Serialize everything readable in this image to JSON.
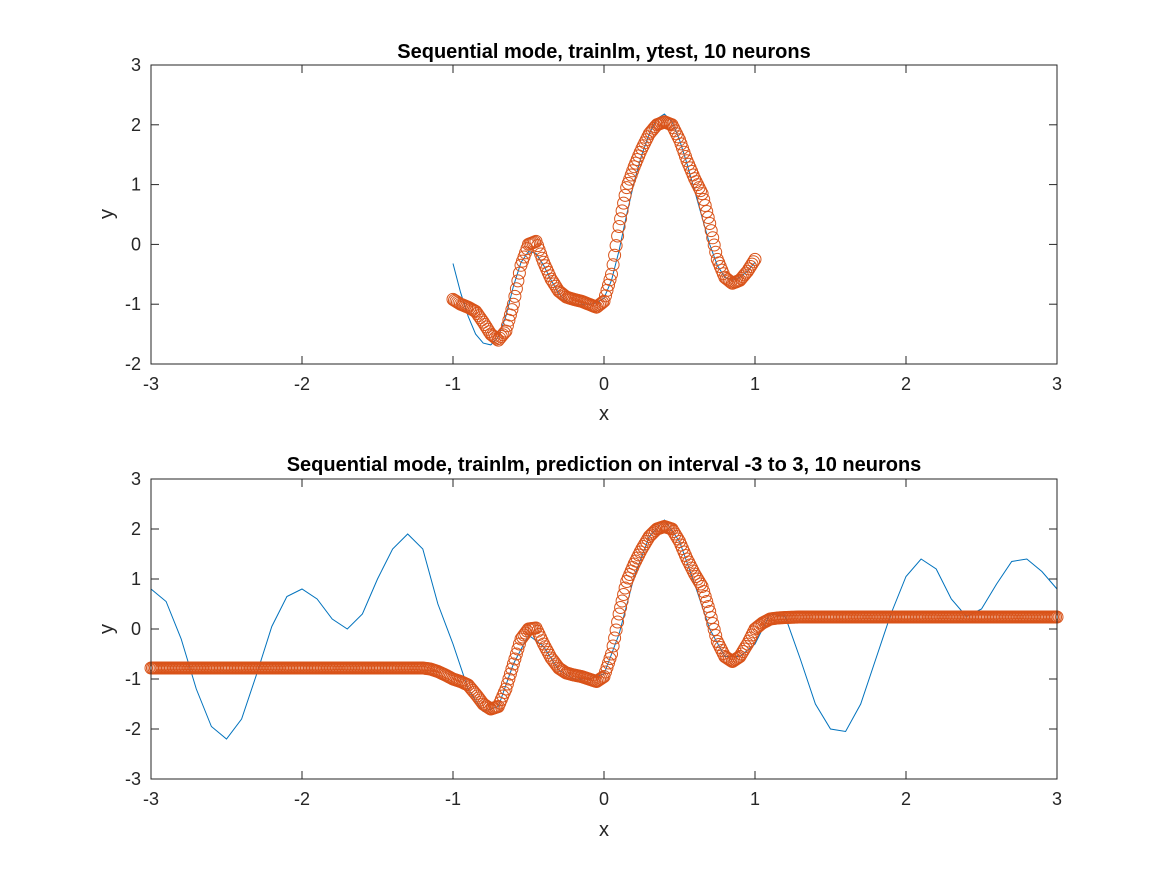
{
  "colors": {
    "background": "#ffffff",
    "axis": "#262626",
    "line": "#0072BD",
    "marker": "#D95319"
  },
  "chart_data": [
    {
      "type": "scatter",
      "title": "Sequential mode, trainlm, ytest, 10 neurons",
      "xlabel": "x",
      "ylabel": "y",
      "xlim": [
        -3,
        3
      ],
      "ylim": [
        -2,
        3
      ],
      "xticks": [
        "-3",
        "-2",
        "-1",
        "0",
        "1",
        "2",
        "3"
      ],
      "yticks": [
        "-2",
        "-1",
        "0",
        "1",
        "2",
        "3"
      ],
      "grid": false,
      "legend": "none",
      "series": [
        {
          "kind": "line",
          "color": "#0072BD",
          "x": [
            -1.0,
            -0.95,
            -0.9,
            -0.85,
            -0.8,
            -0.75,
            -0.7,
            -0.65,
            -0.6,
            -0.55,
            -0.5,
            -0.45,
            -0.4,
            -0.35,
            -0.3,
            -0.25,
            -0.2,
            -0.15,
            -0.1,
            -0.05,
            0.0,
            0.05,
            0.1,
            0.15,
            0.2,
            0.25,
            0.3,
            0.35,
            0.4,
            0.45,
            0.5,
            0.55,
            0.6,
            0.65,
            0.7,
            0.75,
            0.8,
            0.85,
            0.9,
            0.95,
            1.0
          ],
          "y": [
            -0.32,
            -0.8,
            -1.2,
            -1.5,
            -1.65,
            -1.68,
            -1.55,
            -1.2,
            -0.7,
            -0.3,
            -0.12,
            -0.15,
            -0.35,
            -0.6,
            -0.82,
            -0.95,
            -1.0,
            -1.0,
            -1.0,
            -0.98,
            -0.9,
            -0.6,
            -0.1,
            0.5,
            1.05,
            1.5,
            1.85,
            2.1,
            2.18,
            2.05,
            1.75,
            1.35,
            0.9,
            0.45,
            0.0,
            -0.35,
            -0.55,
            -0.6,
            -0.55,
            -0.45,
            -0.3
          ]
        },
        {
          "kind": "marker",
          "color": "#D95319",
          "x": [
            -1.0,
            -0.95,
            -0.9,
            -0.85,
            -0.8,
            -0.75,
            -0.7,
            -0.65,
            -0.6,
            -0.55,
            -0.5,
            -0.45,
            -0.4,
            -0.35,
            -0.3,
            -0.25,
            -0.2,
            -0.15,
            -0.1,
            -0.05,
            0.0,
            0.05,
            0.1,
            0.15,
            0.2,
            0.25,
            0.3,
            0.35,
            0.4,
            0.45,
            0.5,
            0.55,
            0.6,
            0.65,
            0.7,
            0.75,
            0.8,
            0.85,
            0.9,
            0.95,
            1.0
          ],
          "y": [
            -0.92,
            -1.0,
            -1.05,
            -1.12,
            -1.3,
            -1.5,
            -1.6,
            -1.45,
            -1.0,
            -0.35,
            0.0,
            0.05,
            -0.3,
            -0.58,
            -0.78,
            -0.88,
            -0.92,
            -0.95,
            -1.0,
            -1.05,
            -0.95,
            -0.5,
            0.3,
            0.95,
            1.3,
            1.6,
            1.85,
            2.0,
            2.05,
            2.0,
            1.75,
            1.4,
            1.1,
            0.85,
            0.35,
            -0.25,
            -0.55,
            -0.65,
            -0.6,
            -0.45,
            -0.25
          ]
        }
      ]
    },
    {
      "type": "scatter",
      "title": "Sequential mode, trainlm, prediction on interval -3 to 3, 10 neurons",
      "xlabel": "x",
      "ylabel": "y",
      "xlim": [
        -3,
        3
      ],
      "ylim": [
        -3,
        3
      ],
      "xticks": [
        "-3",
        "-2",
        "-1",
        "0",
        "1",
        "2",
        "3"
      ],
      "yticks": [
        "-3",
        "-2",
        "-1",
        "0",
        "1",
        "2",
        "3"
      ],
      "grid": false,
      "legend": "none",
      "series": [
        {
          "kind": "line",
          "color": "#0072BD",
          "x": [
            -3.0,
            -2.9,
            -2.8,
            -2.7,
            -2.6,
            -2.5,
            -2.4,
            -2.3,
            -2.2,
            -2.1,
            -2.0,
            -1.9,
            -1.8,
            -1.7,
            -1.6,
            -1.5,
            -1.4,
            -1.3,
            -1.2,
            -1.1,
            -1.0,
            -0.9,
            -0.8,
            -0.7,
            -0.6,
            -0.5,
            -0.4,
            -0.3,
            -0.2,
            -0.1,
            0.0,
            0.1,
            0.2,
            0.3,
            0.4,
            0.5,
            0.6,
            0.7,
            0.8,
            0.9,
            1.0,
            1.1,
            1.2,
            1.3,
            1.4,
            1.5,
            1.6,
            1.7,
            1.8,
            1.9,
            2.0,
            2.1,
            2.2,
            2.3,
            2.4,
            2.5,
            2.6,
            2.7,
            2.8,
            2.9,
            3.0
          ],
          "y": [
            0.8,
            0.55,
            -0.2,
            -1.2,
            -1.95,
            -2.2,
            -1.8,
            -0.9,
            0.05,
            0.65,
            0.8,
            0.6,
            0.2,
            0.0,
            0.3,
            1.0,
            1.6,
            1.9,
            1.6,
            0.5,
            -0.3,
            -1.2,
            -1.65,
            -1.55,
            -0.7,
            -0.12,
            -0.35,
            -0.82,
            -1.0,
            -1.0,
            -0.9,
            -0.1,
            1.05,
            1.85,
            2.18,
            1.75,
            0.9,
            0.0,
            -0.55,
            -0.55,
            -0.3,
            0.3,
            0.25,
            -0.6,
            -1.5,
            -2.0,
            -2.05,
            -1.5,
            -0.6,
            0.3,
            1.05,
            1.4,
            1.2,
            0.6,
            0.25,
            0.4,
            0.9,
            1.35,
            1.4,
            1.15,
            0.8
          ]
        },
        {
          "kind": "marker",
          "color": "#D95319",
          "x": [
            -3.0,
            -2.9,
            -2.8,
            -2.7,
            -2.6,
            -2.5,
            -2.4,
            -2.3,
            -2.2,
            -2.1,
            -2.0,
            -1.9,
            -1.8,
            -1.7,
            -1.6,
            -1.5,
            -1.4,
            -1.3,
            -1.2,
            -1.15,
            -1.1,
            -1.05,
            -1.0,
            -0.95,
            -0.9,
            -0.85,
            -0.8,
            -0.75,
            -0.7,
            -0.65,
            -0.6,
            -0.55,
            -0.5,
            -0.45,
            -0.4,
            -0.35,
            -0.3,
            -0.25,
            -0.2,
            -0.15,
            -0.1,
            -0.05,
            0.0,
            0.05,
            0.1,
            0.15,
            0.2,
            0.25,
            0.3,
            0.35,
            0.4,
            0.45,
            0.5,
            0.55,
            0.6,
            0.65,
            0.7,
            0.75,
            0.8,
            0.85,
            0.9,
            0.95,
            1.0,
            1.05,
            1.1,
            1.15,
            1.2,
            1.3,
            1.4,
            1.5,
            1.6,
            1.7,
            1.8,
            1.9,
            2.0,
            2.1,
            2.2,
            2.3,
            2.4,
            2.5,
            2.6,
            2.7,
            2.8,
            2.9,
            3.0
          ],
          "y": [
            -0.78,
            -0.78,
            -0.78,
            -0.78,
            -0.78,
            -0.78,
            -0.78,
            -0.78,
            -0.78,
            -0.78,
            -0.78,
            -0.78,
            -0.78,
            -0.78,
            -0.78,
            -0.78,
            -0.78,
            -0.78,
            -0.78,
            -0.8,
            -0.85,
            -0.92,
            -1.0,
            -1.05,
            -1.12,
            -1.3,
            -1.5,
            -1.6,
            -1.55,
            -1.2,
            -0.7,
            -0.2,
            0.0,
            0.02,
            -0.3,
            -0.58,
            -0.78,
            -0.88,
            -0.92,
            -0.95,
            -1.0,
            -1.05,
            -0.95,
            -0.5,
            0.3,
            0.95,
            1.3,
            1.6,
            1.85,
            2.0,
            2.05,
            2.0,
            1.75,
            1.4,
            1.1,
            0.85,
            0.35,
            -0.25,
            -0.55,
            -0.65,
            -0.55,
            -0.3,
            0.0,
            0.12,
            0.2,
            0.22,
            0.23,
            0.24,
            0.24,
            0.24,
            0.24,
            0.24,
            0.24,
            0.24,
            0.24,
            0.24,
            0.24,
            0.24,
            0.24,
            0.24,
            0.24,
            0.24,
            0.24,
            0.24,
            0.24
          ]
        }
      ]
    }
  ]
}
